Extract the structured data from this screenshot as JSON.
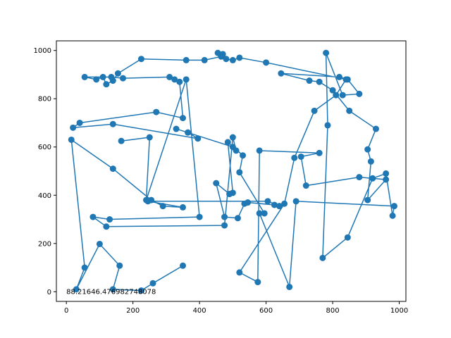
{
  "chart_data": {
    "type": "line",
    "title": "",
    "xlabel": "",
    "ylabel": "",
    "xlim": [
      -30,
      1020
    ],
    "ylim": [
      -40,
      1040
    ],
    "xticks": [
      0,
      200,
      400,
      600,
      800,
      1000
    ],
    "yticks": [
      0,
      200,
      400,
      600,
      800,
      1000
    ],
    "grid": false,
    "line_color": "#1f77b4",
    "marker": "circle",
    "annotation": {
      "text": "88.21646.476982748078",
      "x": 0,
      "y": 0
    },
    "series": [
      {
        "x": [
          350,
          260,
          225,
          140,
          160,
          100,
          30,
          55,
          15,
          140,
          255,
          290,
          350,
          245,
          605,
          640,
          625,
          545,
          535,
          515,
          475,
          450,
          490,
          500,
          485,
          530,
          520,
          595,
          580,
          670,
          690,
          985,
          980,
          960,
          920,
          845,
          770,
          785,
          780,
          830,
          880,
          845,
          820,
          645,
          730,
          760,
          800,
          850,
          930,
          905,
          915,
          905,
          960,
          880,
          720,
          705,
          760,
          580,
          575,
          520,
          655,
          685,
          745,
          810,
          840,
          600,
          520,
          500,
          480,
          470,
          455,
          465,
          415,
          360,
          225,
          155,
          140,
          120,
          110,
          90,
          55,
          135,
          170,
          310,
          325,
          340,
          350,
          270,
          40,
          20,
          140,
          395,
          365,
          330,
          500,
          510,
          500,
          475,
          120,
          80,
          130,
          400,
          360,
          240,
          250,
          165
        ],
        "y": [
          108,
          35,
          5,
          10,
          108,
          198,
          10,
          100,
          630,
          510,
          380,
          355,
          350,
          375,
          375,
          355,
          360,
          370,
          365,
          305,
          310,
          450,
          405,
          410,
          620,
          565,
          495,
          325,
          325,
          20,
          375,
          355,
          315,
          490,
          470,
          225,
          140,
          690,
          990,
          815,
          820,
          880,
          890,
          905,
          875,
          870,
          835,
          750,
          675,
          590,
          540,
          380,
          465,
          475,
          440,
          560,
          575,
          585,
          40,
          80,
          365,
          555,
          750,
          815,
          880,
          950,
          970,
          960,
          965,
          985,
          990,
          975,
          960,
          960,
          965,
          905,
          875,
          860,
          890,
          880,
          890,
          890,
          885,
          890,
          880,
          870,
          720,
          745,
          700,
          680,
          695,
          635,
          660,
          675,
          600,
          585,
          640,
          275,
          270,
          310,
          300,
          310,
          880,
          380,
          640,
          625
        ]
      }
    ]
  }
}
